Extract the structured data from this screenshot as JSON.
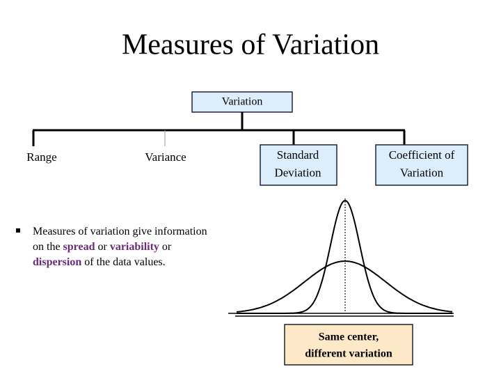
{
  "title": "Measures of Variation",
  "root": {
    "label": [
      "Variation"
    ]
  },
  "children": [
    {
      "label": [
        "Range"
      ]
    },
    {
      "label": [
        "Variance"
      ]
    },
    {
      "label": [
        "Standard",
        "Deviation"
      ]
    },
    {
      "label": [
        "Coefficient of",
        "Variation"
      ]
    }
  ],
  "bullet": {
    "lines": [
      [
        {
          "text": "Measures of variation give information"
        }
      ],
      [
        {
          "text": "on the "
        },
        {
          "text": "spread",
          "emphasis": true
        },
        {
          "text": " or "
        },
        {
          "text": "variability",
          "emphasis": true
        },
        {
          "text": " or"
        }
      ],
      [
        {
          "text": "dispersion",
          "emphasis": true
        },
        {
          "text": " of the data values."
        }
      ]
    ]
  },
  "caption": [
    "Same center,",
    "different variation"
  ]
}
